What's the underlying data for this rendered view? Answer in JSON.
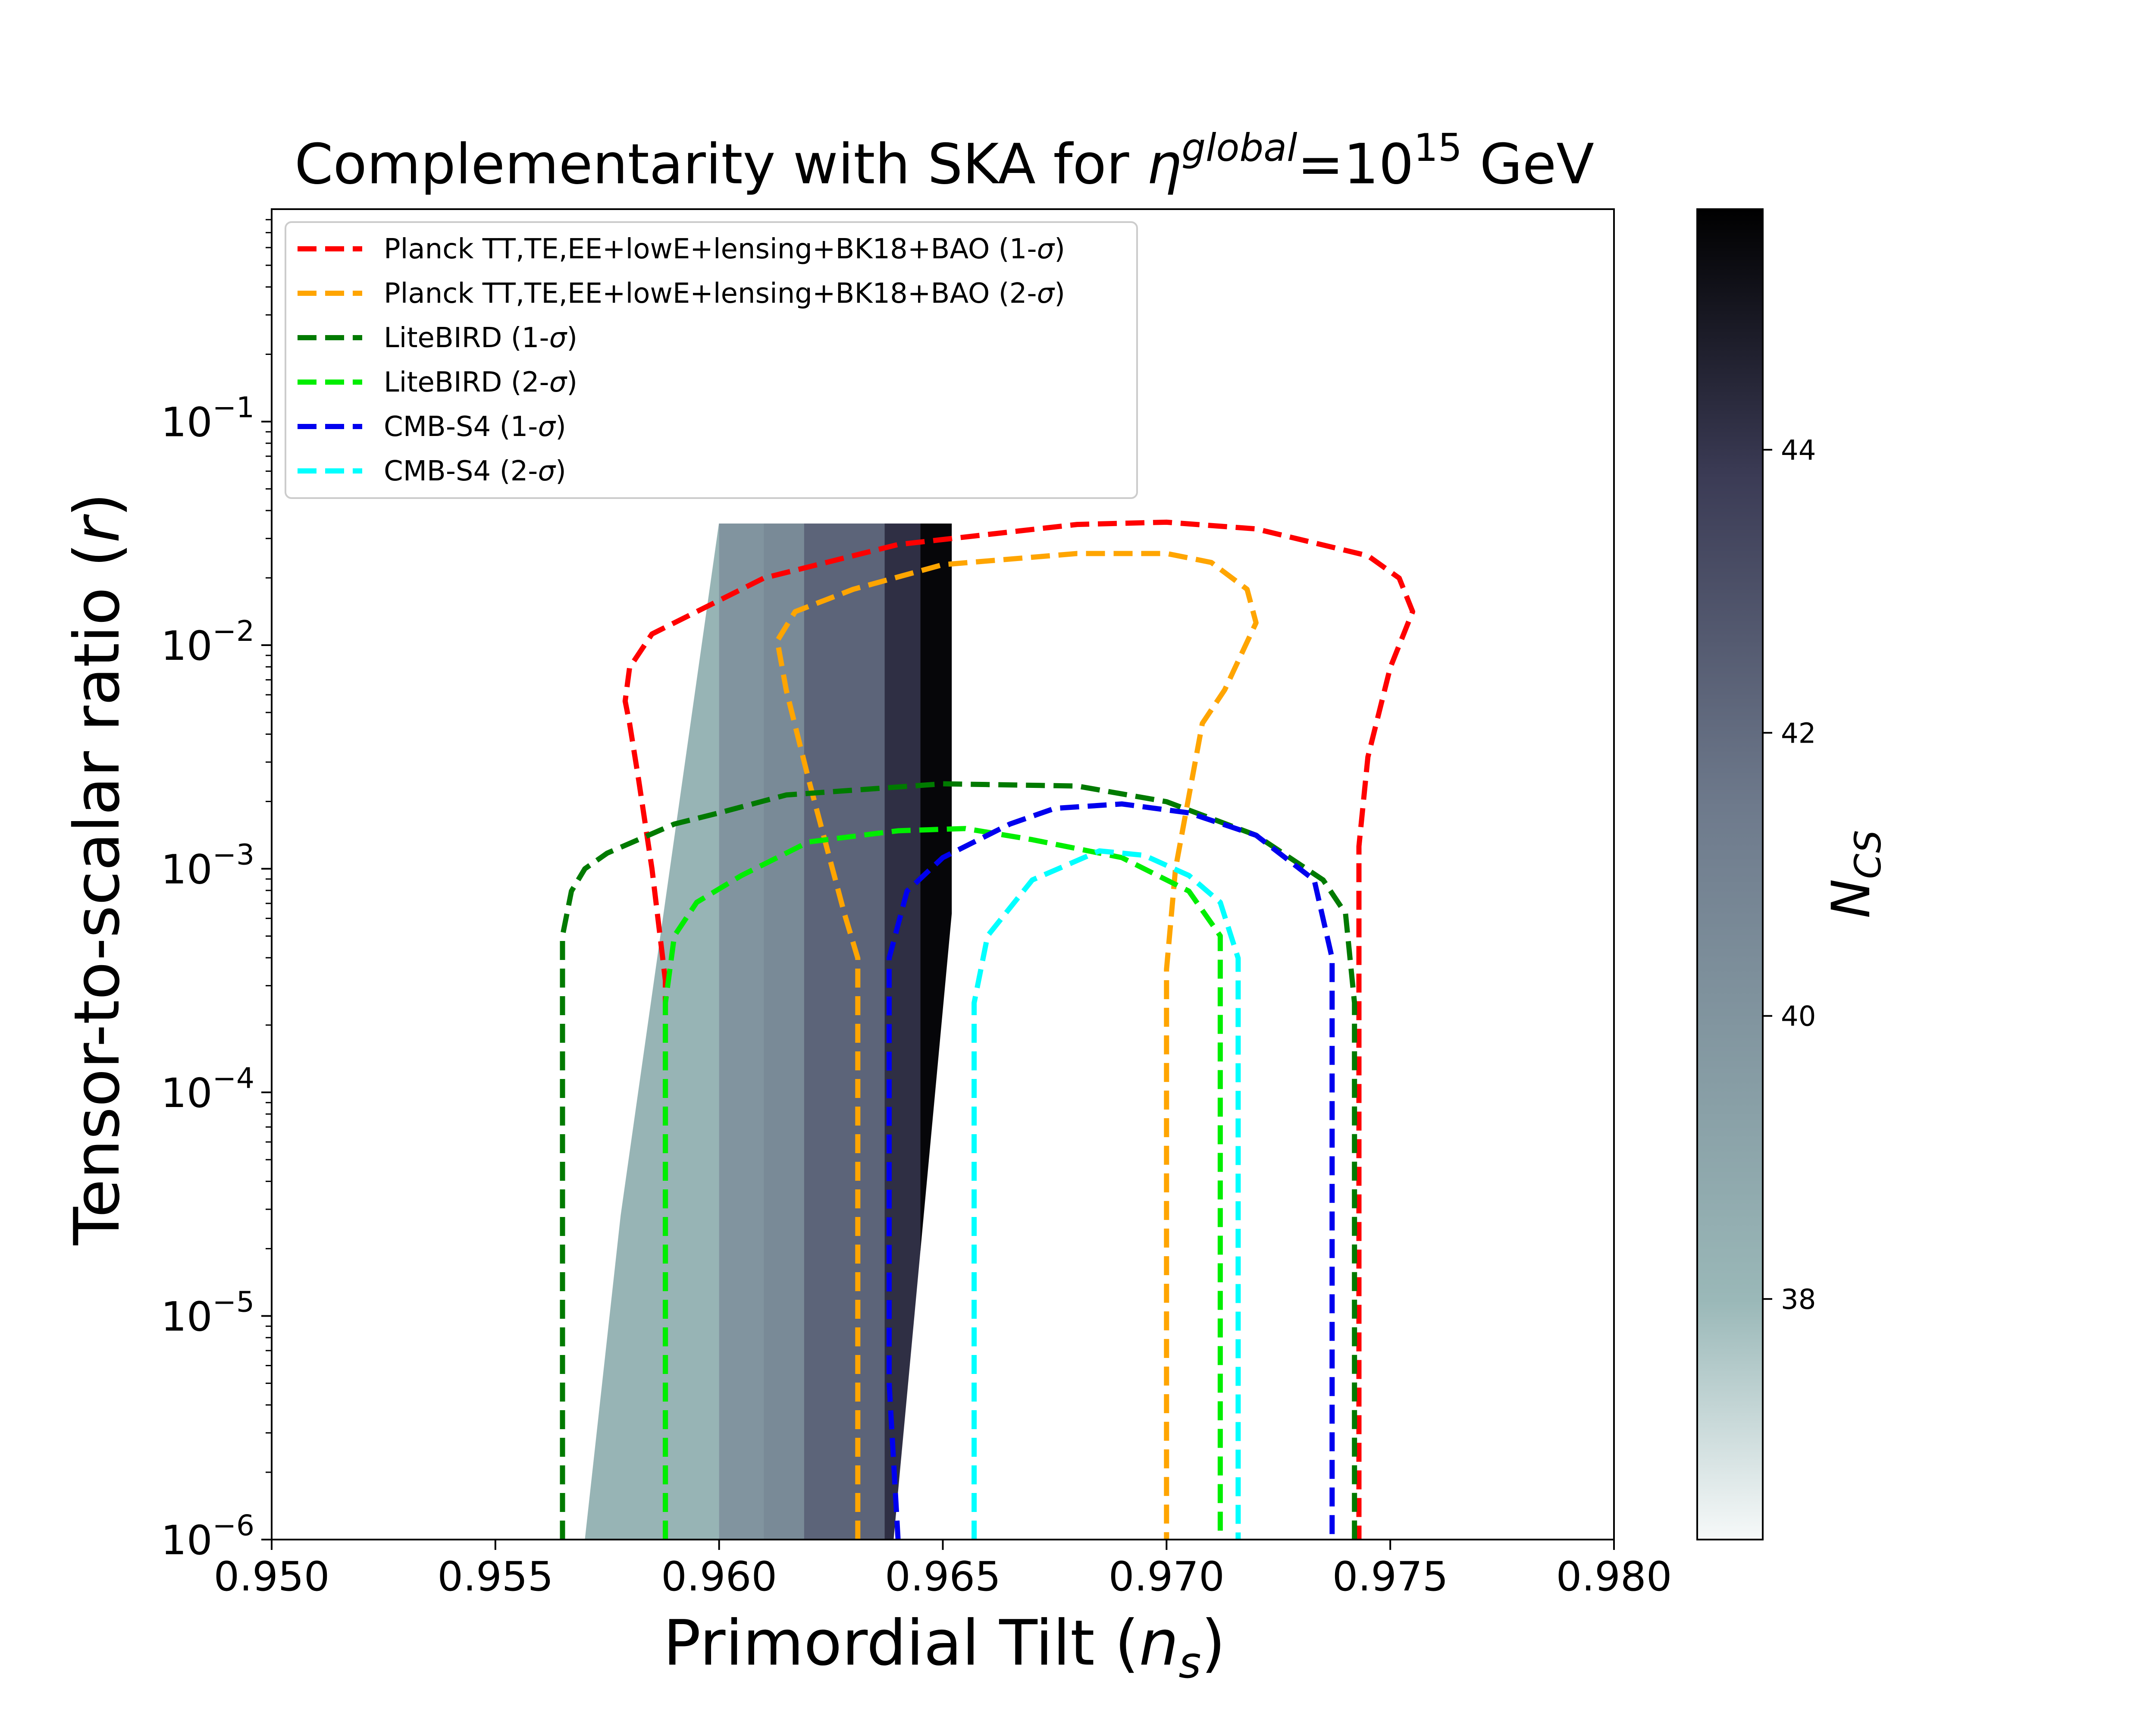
{
  "chart_data": {
    "type": "line",
    "title": {
      "pre": "Complementarity with SKA for ",
      "symbol": "η",
      "sup": "global",
      "mid": "=10",
      "exp": "15",
      "post": " GeV"
    },
    "xlabel": {
      "pre": "Primordial Tilt (",
      "sym": "n",
      "sub": "s",
      "post": ")"
    },
    "ylabel": {
      "pre": "Tensor-to-scalar ratio (",
      "sym": "r",
      "post": ")"
    },
    "xlim": [
      0.95,
      0.98
    ],
    "ylim_log10": [
      -6,
      -0.05
    ],
    "x_ticks": [
      {
        "v": 0.95,
        "label": "0.950"
      },
      {
        "v": 0.955,
        "label": "0.955"
      },
      {
        "v": 0.96,
        "label": "0.960"
      },
      {
        "v": 0.965,
        "label": "0.965"
      },
      {
        "v": 0.97,
        "label": "0.970"
      },
      {
        "v": 0.975,
        "label": "0.975"
      },
      {
        "v": 0.98,
        "label": "0.980"
      }
    ],
    "y_ticks": [
      {
        "exp": -6,
        "base": "10",
        "sup": "−6"
      },
      {
        "exp": -5,
        "base": "10",
        "sup": "−5"
      },
      {
        "exp": -4,
        "base": "10",
        "sup": "−4"
      },
      {
        "exp": -3,
        "base": "10",
        "sup": "−3"
      },
      {
        "exp": -2,
        "base": "10",
        "sup": "−2"
      },
      {
        "exp": -1,
        "base": "10",
        "sup": "−1"
      }
    ],
    "colorbar": {
      "label_sym": "N",
      "label_sub": "CS",
      "range": [
        36.3,
        45.7
      ],
      "ticks": [
        {
          "v": 38,
          "label": "38"
        },
        {
          "v": 40,
          "label": "40"
        },
        {
          "v": 42,
          "label": "42"
        },
        {
          "v": 44,
          "label": "44"
        }
      ],
      "colors": [
        "#f6f9f9",
        "#9ab8b8",
        "#6e7a8c",
        "#3b3b55",
        "#000000"
      ]
    },
    "region_bands": [
      {
        "ns": [
          0.957,
          0.96
        ],
        "r_top": 0.035,
        "N": 38.2
      },
      {
        "ns": [
          0.96,
          0.961
        ],
        "r_top": 0.035,
        "N": 40.0
      },
      {
        "ns": [
          0.961,
          0.9619
        ],
        "r_top": 0.035,
        "N": 40.6
      },
      {
        "ns": [
          0.9619,
          0.9637
        ],
        "r_top": 0.035,
        "N": 42.3
      },
      {
        "ns": [
          0.9637,
          0.9645
        ],
        "r_top": 0.035,
        "N": 44.2
      },
      {
        "ns": [
          0.9645,
          0.9652
        ],
        "r_top": 0.035,
        "N": 45.5
      }
    ],
    "region_left_edge": [
      [
        0.957,
        -6
      ],
      [
        0.9578,
        -4.55
      ],
      [
        0.96,
        -1.45
      ]
    ],
    "region_right_edge": [
      [
        0.9652,
        -3.2
      ],
      [
        0.9639,
        -6
      ]
    ],
    "legend": [
      {
        "label": "Planck TT,TE,EE+lowE+lensing+BK18+BAO (1-",
        "sigma": "σ",
        "close": ")",
        "color": "#ff0000"
      },
      {
        "label": "Planck TT,TE,EE+lowE+lensing+BK18+BAO (2-",
        "sigma": "σ",
        "close": ")",
        "color": "#ffa500"
      },
      {
        "label": "LiteBIRD (1-",
        "sigma": "σ",
        "close": ")",
        "color": "#007a00"
      },
      {
        "label": "LiteBIRD (2-",
        "sigma": "σ",
        "close": ")",
        "color": "#00ee00"
      },
      {
        "label": "CMB-S4 (1-",
        "sigma": "σ",
        "close": ")",
        "color": "#0000ee"
      },
      {
        "label": "CMB-S4 (2-",
        "sigma": "σ",
        "close": ")",
        "color": "#00ffff"
      }
    ],
    "series": [
      {
        "name": "Planck 1-σ",
        "color": "#ff0000",
        "points": [
          [
            0.9588,
            -6
          ],
          [
            0.9588,
            -3.5
          ],
          [
            0.9585,
            -3.0
          ],
          [
            0.9582,
            -2.6
          ],
          [
            0.958,
            -2.35
          ],
          [
            0.9579,
            -2.25
          ],
          [
            0.958,
            -2.1
          ],
          [
            0.9585,
            -1.95
          ],
          [
            0.9595,
            -1.85
          ],
          [
            0.961,
            -1.7
          ],
          [
            0.964,
            -1.55
          ],
          [
            0.968,
            -1.46
          ],
          [
            0.97,
            -1.45
          ],
          [
            0.972,
            -1.48
          ],
          [
            0.9745,
            -1.6
          ],
          [
            0.9752,
            -1.7
          ],
          [
            0.9755,
            -1.85
          ],
          [
            0.975,
            -2.1
          ],
          [
            0.9745,
            -2.5
          ],
          [
            0.9743,
            -2.9
          ],
          [
            0.9743,
            -3.3
          ],
          [
            0.9743,
            -6
          ]
        ]
      },
      {
        "name": "Planck 2-σ",
        "color": "#ffa500",
        "points": [
          [
            0.9631,
            -6
          ],
          [
            0.9631,
            -3.4
          ],
          [
            0.9628,
            -3.2
          ],
          [
            0.962,
            -2.6
          ],
          [
            0.9615,
            -2.2
          ],
          [
            0.9613,
            -1.98
          ],
          [
            0.9617,
            -1.85
          ],
          [
            0.963,
            -1.75
          ],
          [
            0.965,
            -1.64
          ],
          [
            0.968,
            -1.59
          ],
          [
            0.97,
            -1.59
          ],
          [
            0.971,
            -1.63
          ],
          [
            0.9718,
            -1.75
          ],
          [
            0.972,
            -1.9
          ],
          [
            0.9713,
            -2.2
          ],
          [
            0.9708,
            -2.35
          ],
          [
            0.9702,
            -3.0
          ],
          [
            0.97,
            -3.45
          ],
          [
            0.97,
            -6
          ]
        ]
      },
      {
        "name": "LiteBIRD 1-σ",
        "color": "#007a00",
        "points": [
          [
            0.9565,
            -6
          ],
          [
            0.9565,
            -3.3
          ],
          [
            0.9567,
            -3.1
          ],
          [
            0.957,
            -3.0
          ],
          [
            0.9575,
            -2.93
          ],
          [
            0.959,
            -2.8
          ],
          [
            0.96,
            -2.75
          ],
          [
            0.9615,
            -2.67
          ],
          [
            0.965,
            -2.62
          ],
          [
            0.968,
            -2.63
          ],
          [
            0.97,
            -2.7
          ],
          [
            0.972,
            -2.85
          ],
          [
            0.9735,
            -3.05
          ],
          [
            0.974,
            -3.2
          ],
          [
            0.9742,
            -3.6
          ],
          [
            0.9742,
            -6
          ]
        ]
      },
      {
        "name": "LiteBIRD 2-σ",
        "color": "#00ee00",
        "points": [
          [
            0.9588,
            -6
          ],
          [
            0.9588,
            -3.6
          ],
          [
            0.959,
            -3.3
          ],
          [
            0.9595,
            -3.15
          ],
          [
            0.9605,
            -3.03
          ],
          [
            0.962,
            -2.88
          ],
          [
            0.964,
            -2.83
          ],
          [
            0.9655,
            -2.82
          ],
          [
            0.967,
            -2.87
          ],
          [
            0.969,
            -2.95
          ],
          [
            0.9705,
            -3.1
          ],
          [
            0.9712,
            -3.3
          ],
          [
            0.9712,
            -3.55
          ],
          [
            0.9712,
            -6
          ]
        ]
      },
      {
        "name": "CMB-S4 1-σ",
        "color": "#0000ee",
        "points": [
          [
            0.964,
            -6
          ],
          [
            0.9638,
            -5.3
          ],
          [
            0.9638,
            -3.4
          ],
          [
            0.9642,
            -3.1
          ],
          [
            0.965,
            -2.95
          ],
          [
            0.9665,
            -2.8
          ],
          [
            0.9675,
            -2.73
          ],
          [
            0.969,
            -2.71
          ],
          [
            0.9705,
            -2.75
          ],
          [
            0.972,
            -2.85
          ],
          [
            0.9733,
            -3.05
          ],
          [
            0.9737,
            -3.4
          ],
          [
            0.9737,
            -6
          ]
        ]
      },
      {
        "name": "CMB-S4 2-σ",
        "color": "#00ffff",
        "points": [
          [
            0.9657,
            -6
          ],
          [
            0.9657,
            -3.6
          ],
          [
            0.966,
            -3.3
          ],
          [
            0.967,
            -3.05
          ],
          [
            0.9685,
            -2.92
          ],
          [
            0.9695,
            -2.94
          ],
          [
            0.9705,
            -3.03
          ],
          [
            0.9712,
            -3.15
          ],
          [
            0.9716,
            -3.4
          ],
          [
            0.9716,
            -6
          ]
        ]
      }
    ]
  }
}
